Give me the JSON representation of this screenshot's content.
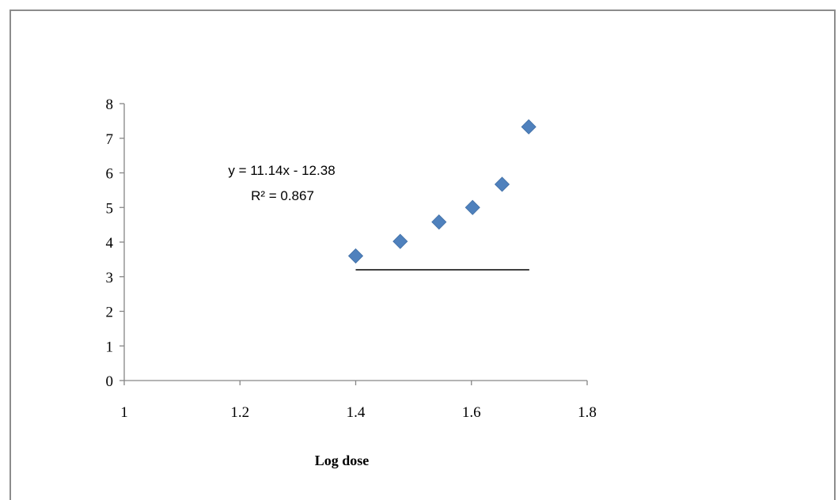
{
  "chart_data": {
    "type": "scatter",
    "xlabel": "Log dose",
    "ylabel": "",
    "xlim": [
      1,
      1.8
    ],
    "ylim": [
      0,
      8
    ],
    "xticks": [
      "1",
      "1.2",
      "1.4",
      "1.6",
      "1.8"
    ],
    "yticks": [
      "0",
      "1",
      "2",
      "3",
      "4",
      "5",
      "6",
      "7",
      "8"
    ],
    "grid": false,
    "legend": "none",
    "marker_color": "#4f81bd",
    "series": [
      {
        "x": [
          1.4,
          1.477,
          1.544,
          1.602,
          1.653,
          1.699
        ],
        "y": [
          3.6,
          4.02,
          4.58,
          5.0,
          5.67,
          7.33
        ]
      }
    ],
    "annotations": {
      "equation": "y = 11.14x - 12.38",
      "r_squared": "R² = 0.867"
    },
    "reference_line": {
      "x": [
        1.4,
        1.7
      ],
      "y": [
        3.2,
        3.2
      ],
      "color": "#000000"
    }
  }
}
